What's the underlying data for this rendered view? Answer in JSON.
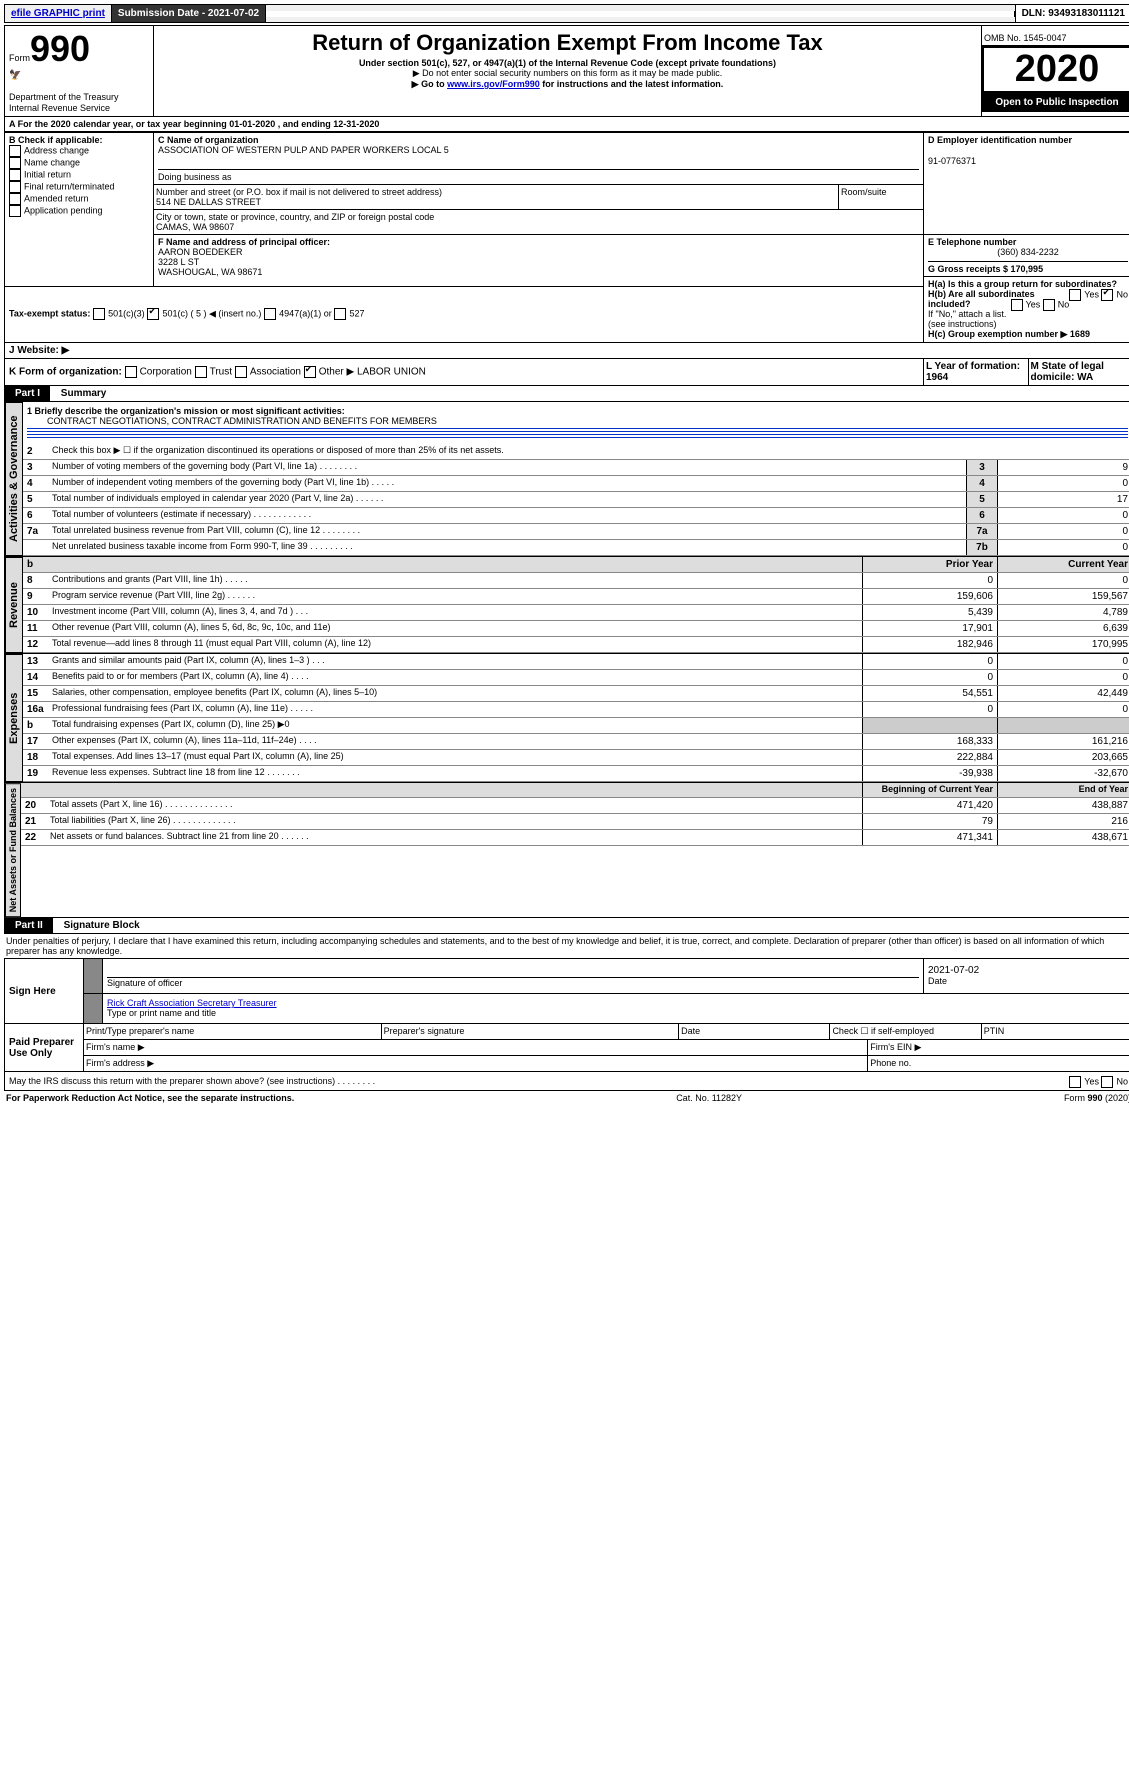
{
  "topbar": {
    "efile": "efile GRAPHIC print",
    "submission_label": "Submission Date - 2021-07-02",
    "dln_label": "DLN: 93493183011121"
  },
  "header": {
    "form_label": "Form",
    "form_number": "990",
    "title": "Return of Organization Exempt From Income Tax",
    "subtitle": "Under section 501(c), 527, or 4947(a)(1) of the Internal Revenue Code (except private foundations)",
    "note1": "Do not enter social security numbers on this form as it may be made public.",
    "note2_prefix": "Go to ",
    "note2_link": "www.irs.gov/Form990",
    "note2_suffix": " for instructions and the latest information.",
    "omb": "OMB No. 1545-0047",
    "year": "2020",
    "open_public": "Open to Public Inspection",
    "dept": "Department of the Treasury",
    "irs": "Internal Revenue Service"
  },
  "periodA": {
    "text": "For the 2020 calendar year, or tax year beginning 01-01-2020   , and ending 12-31-2020"
  },
  "blockB": {
    "label": "B Check if applicable:",
    "items": [
      "Address change",
      "Name change",
      "Initial return",
      "Final return/terminated",
      "Amended return",
      "Application pending"
    ]
  },
  "blockC": {
    "name_label": "C Name of organization",
    "name": "ASSOCIATION OF WESTERN PULP AND PAPER WORKERS LOCAL 5",
    "dba_label": "Doing business as",
    "addr_label": "Number and street (or P.O. box if mail is not delivered to street address)",
    "room_label": "Room/suite",
    "addr": "514 NE DALLAS STREET",
    "city_label": "City or town, state or province, country, and ZIP or foreign postal code",
    "city": "CAMAS, WA  98607"
  },
  "blockD": {
    "label": "D Employer identification number",
    "value": "91-0776371"
  },
  "blockE": {
    "label": "E Telephone number",
    "value": "(360) 834-2232"
  },
  "blockF": {
    "label": "F  Name and address of principal officer:",
    "name": "AARON BOEDEKER",
    "addr1": "3228 L ST",
    "addr2": "WASHOUGAL, WA  98671"
  },
  "blockG": {
    "label": "G Gross receipts $ 170,995"
  },
  "blockH": {
    "ha": "H(a)  Is this a group return for subordinates?",
    "hb": "H(b)  Are all subordinates included?",
    "hb_note": "If \"No,\" attach a list. (see instructions)",
    "hc": "H(c)  Group exemption number ▶   1689"
  },
  "blockI": {
    "label": "Tax-exempt status:",
    "c3": "501(c)(3)",
    "c5": "501(c) ( 5 ) ◀ (insert no.)",
    "a1": "4947(a)(1) or",
    "s527": "527"
  },
  "blockJ": {
    "label": "J   Website: ▶"
  },
  "blockK": {
    "label": "K Form of organization:",
    "corp": "Corporation",
    "trust": "Trust",
    "assoc": "Association",
    "other": "Other ▶",
    "other_val": "LABOR UNION"
  },
  "blockL": {
    "label": "L Year of formation: 1964"
  },
  "blockM": {
    "label": "M State of legal domicile: WA"
  },
  "part1": {
    "header": "Part I",
    "title": "Summary",
    "q1_label": "1   Briefly describe the organization's mission or most significant activities:",
    "q1_text": "CONTRACT NEGOTIATIONS, CONTRACT ADMINISTRATION AND BENEFITS FOR MEMBERS",
    "q2": "Check this box ▶ ☐  if the organization discontinued its operations or disposed of more than 25% of its net assets.",
    "rows_gov": [
      {
        "n": "3",
        "d": "Number of voting members of the governing body (Part VI, line 1a)   .    .    .    .    .    .    .    .",
        "b": "3",
        "v": "9"
      },
      {
        "n": "4",
        "d": "Number of independent voting members of the governing body (Part VI, line 1b)    .    .    .    .    .",
        "b": "4",
        "v": "0"
      },
      {
        "n": "5",
        "d": "Total number of individuals employed in calendar year 2020 (Part V, line 2a)   .    .    .    .    .    .",
        "b": "5",
        "v": "17"
      },
      {
        "n": "6",
        "d": "Total number of volunteers (estimate if necessary)    .    .    .    .    .    .    .    .    .    .    .    .",
        "b": "6",
        "v": "0"
      },
      {
        "n": "7a",
        "d": "Total unrelated business revenue from Part VIII, column (C), line 12   .    .    .    .    .    .    .    .",
        "b": "7a",
        "v": "0"
      },
      {
        "n": "",
        "d": "Net unrelated business taxable income from Form 990-T, line 39    .    .    .    .    .    .    .    .    .",
        "b": "7b",
        "v": "0"
      }
    ],
    "col_prior": "Prior Year",
    "col_curr": "Current Year",
    "rows_rev": [
      {
        "n": "8",
        "d": "Contributions and grants (Part VIII, line 1h)    .    .    .    .    .",
        "p": "0",
        "c": "0"
      },
      {
        "n": "9",
        "d": "Program service revenue (Part VIII, line 2g)    .    .    .    .    .    .",
        "p": "159,606",
        "c": "159,567"
      },
      {
        "n": "10",
        "d": "Investment income (Part VIII, column (A), lines 3, 4, and 7d )    .    .    .",
        "p": "5,439",
        "c": "4,789"
      },
      {
        "n": "11",
        "d": "Other revenue (Part VIII, column (A), lines 5, 6d, 8c, 9c, 10c, and 11e)",
        "p": "17,901",
        "c": "6,639"
      },
      {
        "n": "12",
        "d": "Total revenue—add lines 8 through 11 (must equal Part VIII, column (A), line 12)",
        "p": "182,946",
        "c": "170,995"
      }
    ],
    "rows_exp": [
      {
        "n": "13",
        "d": "Grants and similar amounts paid (Part IX, column (A), lines 1–3 )   .    .    .",
        "p": "0",
        "c": "0"
      },
      {
        "n": "14",
        "d": "Benefits paid to or for members (Part IX, column (A), line 4)   .    .    .    .",
        "p": "0",
        "c": "0"
      },
      {
        "n": "15",
        "d": "Salaries, other compensation, employee benefits (Part IX, column (A), lines 5–10)",
        "p": "54,551",
        "c": "42,449"
      },
      {
        "n": "16a",
        "d": "Professional fundraising fees (Part IX, column (A), line 11e)   .    .    .    .    .",
        "p": "0",
        "c": "0"
      },
      {
        "n": "b",
        "d": "Total fundraising expenses (Part IX, column (D), line 25) ▶0",
        "p": "",
        "c": "",
        "grey": true
      },
      {
        "n": "17",
        "d": "Other expenses (Part IX, column (A), lines 11a–11d, 11f–24e)   .    .    .    .",
        "p": "168,333",
        "c": "161,216"
      },
      {
        "n": "18",
        "d": "Total expenses. Add lines 13–17 (must equal Part IX, column (A), line 25)",
        "p": "222,884",
        "c": "203,665"
      },
      {
        "n": "19",
        "d": "Revenue less expenses. Subtract line 18 from line 12   .    .    .    .    .    .    .",
        "p": "-39,938",
        "c": "-32,670"
      }
    ],
    "col_bgn": "Beginning of Current Year",
    "col_end": "End of Year",
    "rows_net": [
      {
        "n": "20",
        "d": "Total assets (Part X, line 16)   .    .    .    .    .    .    .    .    .    .    .    .    .    .",
        "p": "471,420",
        "c": "438,887"
      },
      {
        "n": "21",
        "d": "Total liabilities (Part X, line 26)   .    .    .    .    .    .    .    .    .    .    .    .    .",
        "p": "79",
        "c": "216"
      },
      {
        "n": "22",
        "d": "Net assets or fund balances. Subtract line 21 from line 20   .    .    .    .    .    .",
        "p": "471,341",
        "c": "438,671"
      }
    ],
    "sec_gov": "Activities & Governance",
    "sec_rev": "Revenue",
    "sec_exp": "Expenses",
    "sec_net": "Net Assets or Fund Balances"
  },
  "part2": {
    "header": "Part II",
    "title": "Signature Block",
    "perjury": "Under penalties of perjury, I declare that I have examined this return, including accompanying schedules and statements, and to the best of my knowledge and belief, it is true, correct, and complete. Declaration of preparer (other than officer) is based on all information of which preparer has any knowledge.",
    "sign_here": "Sign Here",
    "sig_officer": "Signature of officer",
    "sig_date": "2021-07-02",
    "date_label": "Date",
    "officer_name": "Rick Craft Association Secretary Treasurer",
    "type_name": "Type or print name and title",
    "paid_prep": "Paid Preparer Use Only",
    "pp_name": "Print/Type preparer's name",
    "pp_sig": "Preparer's signature",
    "pp_date": "Date",
    "pp_check": "Check ☐ if self-employed",
    "pp_ptin": "PTIN",
    "pp_firm": "Firm's name    ▶",
    "pp_ein": "Firm's EIN ▶",
    "pp_addr": "Firm's address ▶",
    "pp_phone": "Phone no.",
    "discuss": "May the IRS discuss this return with the preparer shown above? (see instructions)     .     .     .     .     .     .     .     .",
    "yes": "Yes",
    "no": "No"
  },
  "footer": {
    "pra": "For Paperwork Reduction Act Notice, see the separate instructions.",
    "cat": "Cat. No. 11282Y",
    "form": "Form 990 (2020)"
  }
}
